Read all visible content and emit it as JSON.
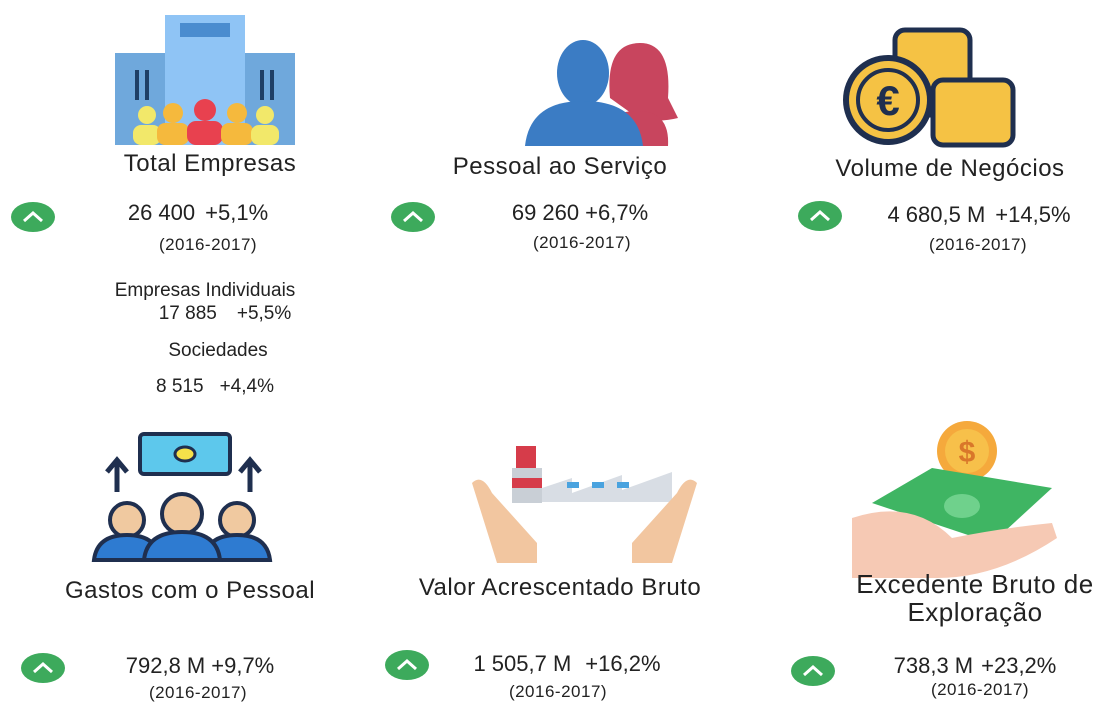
{
  "cards": [
    {
      "title": "Total Empresas",
      "value": "26 400",
      "change": "+5,1%",
      "period": "(2016-2017)",
      "items": [
        {
          "label": "Empresas Individuais",
          "value": "17 885",
          "change": "+5,5%"
        },
        {
          "label": "Sociedades",
          "value": "8 515",
          "change": "+4,4%"
        }
      ]
    },
    {
      "title": "Pessoal ao Serviço",
      "value": "69 260",
      "change": "+6,7%",
      "period": "(2016-2017)"
    },
    {
      "title": "Volume de Negócios",
      "value": "4 680,5 M",
      "change": "+14,5%",
      "period": "(2016-2017)"
    },
    {
      "title": "Gastos com o Pessoal",
      "value": "792,8 M",
      "change": "+9,7%",
      "period": "(2016-2017)"
    },
    {
      "title": "Valor Acrescentado Bruto",
      "value": "1 505,7 M",
      "change": "+16,2%",
      "period": "(2016-2017)"
    },
    {
      "title": "Excedente Bruto de Exploração",
      "value": "738,3 M",
      "change": "+23,2%",
      "period": "(2016-2017)"
    }
  ]
}
